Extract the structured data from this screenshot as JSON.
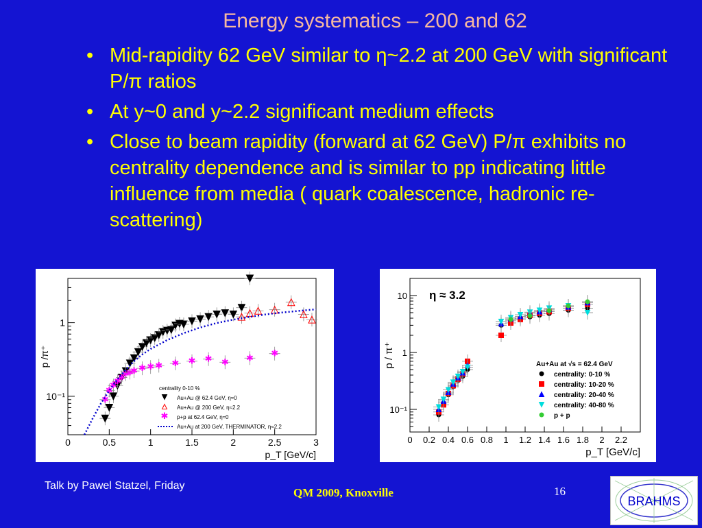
{
  "slide": {
    "title": "Energy systematics – 200 and 62",
    "bullets": [
      "Mid-rapidity 62 GeV similar to η~2.2 at 200 GeV with significant P/π ratios",
      "At y~0 and y~2.2 significant medium effects",
      "Close to beam rapidity (forward at 62 GeV)  P/π exhibits no centrality dependence and is similar to pp indicating little influence from media ( quark coalescence, hadronic re-scattering)"
    ]
  },
  "footer": {
    "talk": "Talk by Pawel Statzel, Friday",
    "conference": "QM 2009, Knoxville",
    "page": "16",
    "logo_text": "BRAHMS"
  },
  "colors": {
    "background": "#1414d2",
    "title": "#f5b8a0",
    "bullet_text": "#ffff00",
    "footer_text": "#ffffff",
    "logo_text": "#0000cc"
  },
  "chart_data": [
    {
      "type": "scatter",
      "xlabel": "p_T [GeV/c]",
      "ylabel": "p /π⁺",
      "xlim": [
        0,
        3
      ],
      "ylim": [
        0.03,
        4
      ],
      "yscale": "log",
      "xticks": [
        "0",
        "0.5",
        "1",
        "1.5",
        "2",
        "2.5",
        "3"
      ],
      "yticks": [
        "10⁻¹",
        "1"
      ],
      "legend_title": "centrality 0-10 %",
      "legend_position": "bottom-right",
      "series": [
        {
          "name": "Au+Au @ 62.4 GeV,  η≈0",
          "marker": "triangle-down",
          "color": "#000000",
          "x": [
            0.45,
            0.5,
            0.55,
            0.6,
            0.65,
            0.7,
            0.75,
            0.8,
            0.85,
            0.9,
            0.95,
            1.0,
            1.05,
            1.1,
            1.15,
            1.2,
            1.25,
            1.3,
            1.35,
            1.4,
            1.5,
            1.6,
            1.7,
            1.8,
            1.9,
            2.0,
            2.1,
            2.2
          ],
          "y": [
            0.05,
            0.07,
            0.1,
            0.14,
            0.18,
            0.22,
            0.28,
            0.33,
            0.4,
            0.47,
            0.53,
            0.58,
            0.62,
            0.68,
            0.75,
            0.78,
            0.8,
            0.92,
            0.97,
            0.95,
            1.05,
            1.12,
            1.2,
            1.3,
            1.35,
            1.3,
            1.6,
            4.0
          ]
        },
        {
          "name": "Au+Au @ 200 GeV,  η≈2.2",
          "marker": "triangle-up-open",
          "color": "#ff0000",
          "x": [
            2.1,
            2.2,
            2.3,
            2.5,
            2.7,
            2.85,
            2.95
          ],
          "y": [
            1.2,
            1.35,
            1.45,
            1.5,
            1.9,
            1.3,
            1.1
          ]
        },
        {
          "name": "p+p at 62.4 GeV,  η≈0",
          "marker": "star",
          "color": "#ff00ff",
          "x": [
            0.45,
            0.5,
            0.55,
            0.6,
            0.65,
            0.7,
            0.75,
            0.8,
            0.9,
            1.0,
            1.1,
            1.3,
            1.5,
            1.7,
            1.9,
            2.2,
            2.5
          ],
          "y": [
            0.09,
            0.12,
            0.14,
            0.16,
            0.18,
            0.2,
            0.21,
            0.22,
            0.24,
            0.25,
            0.26,
            0.28,
            0.3,
            0.32,
            0.29,
            0.33,
            0.38
          ]
        },
        {
          "name": "Au+Au at 200 GeV, THERMINATOR,  η≈2.2",
          "marker": "dotted-line",
          "color": "#0000cc",
          "x": [
            0.2,
            0.3,
            0.4,
            0.5,
            0.6,
            0.7,
            0.8,
            0.9,
            1.0,
            1.2,
            1.4,
            1.6,
            1.8,
            2.0,
            2.2,
            2.4,
            2.6,
            2.8,
            3.0
          ],
          "y": [
            0.03,
            0.05,
            0.08,
            0.12,
            0.17,
            0.23,
            0.3,
            0.37,
            0.44,
            0.58,
            0.72,
            0.86,
            0.99,
            1.1,
            1.2,
            1.3,
            1.38,
            1.45,
            1.52
          ]
        }
      ]
    },
    {
      "type": "scatter",
      "xlabel": "p_T [GeV/c]",
      "ylabel": "p / π⁺",
      "annotation": "η  ≈ 3.2",
      "xlim": [
        0,
        2.4
      ],
      "ylim": [
        0.04,
        20
      ],
      "yscale": "log",
      "xticks": [
        "0",
        "0.2",
        "0.4",
        "0.6",
        "0.8",
        "1",
        "1.2",
        "1.4",
        "1.6",
        "1.8",
        "2",
        "2.2"
      ],
      "yticks": [
        "10⁻¹",
        "1",
        "10"
      ],
      "legend_title": "Au+Au at √s = 62.4 GeV",
      "legend_position": "right",
      "series": [
        {
          "name": "centrality: 0-10 %",
          "marker": "circle",
          "color": "#000000",
          "x": [
            0.3,
            0.35,
            0.4,
            0.45,
            0.5,
            0.55,
            0.6,
            0.95,
            1.05,
            1.15,
            1.25,
            1.35,
            1.45,
            1.65,
            1.85
          ],
          "y": [
            0.08,
            0.13,
            0.18,
            0.25,
            0.32,
            0.38,
            0.5,
            3.0,
            3.6,
            4.0,
            4.2,
            4.5,
            4.8,
            5.5,
            6.0
          ]
        },
        {
          "name": "centrality: 10-20 %",
          "marker": "square",
          "color": "#ff0000",
          "x": [
            0.3,
            0.35,
            0.4,
            0.45,
            0.5,
            0.55,
            0.6,
            0.95,
            1.05,
            1.15,
            1.25,
            1.35,
            1.45,
            1.65,
            1.85
          ],
          "y": [
            0.09,
            0.12,
            0.19,
            0.26,
            0.34,
            0.42,
            0.7,
            2.0,
            3.3,
            3.8,
            4.5,
            4.9,
            5.2,
            6.0,
            7.0
          ]
        },
        {
          "name": "centrality: 20-40 %",
          "marker": "triangle-up",
          "color": "#0000ff",
          "x": [
            0.3,
            0.35,
            0.4,
            0.45,
            0.5,
            0.55,
            0.6,
            0.95,
            1.05,
            1.15,
            1.25,
            1.35,
            1.45,
            1.65,
            1.85
          ],
          "y": [
            0.1,
            0.14,
            0.2,
            0.28,
            0.36,
            0.44,
            0.6,
            3.2,
            3.9,
            4.3,
            4.9,
            5.2,
            5.7,
            6.3,
            7.5
          ]
        },
        {
          "name": "centrality: 40-80 %",
          "marker": "triangle-down",
          "color": "#00dddd",
          "x": [
            0.3,
            0.35,
            0.4,
            0.45,
            0.5,
            0.55,
            0.6,
            0.95,
            1.05,
            1.15,
            1.25,
            1.35,
            1.45,
            1.65,
            1.85
          ],
          "y": [
            0.11,
            0.15,
            0.22,
            0.3,
            0.38,
            0.46,
            0.55,
            3.5,
            4.1,
            4.6,
            5.1,
            5.5,
            6.0,
            6.6,
            5.0
          ]
        },
        {
          "name": "p + p",
          "marker": "circle",
          "color": "#33cc33",
          "x": [
            1.05,
            1.25,
            1.45,
            1.65,
            1.85
          ],
          "y": [
            3.8,
            4.4,
            5.4,
            6.6,
            7.8
          ]
        }
      ]
    }
  ]
}
